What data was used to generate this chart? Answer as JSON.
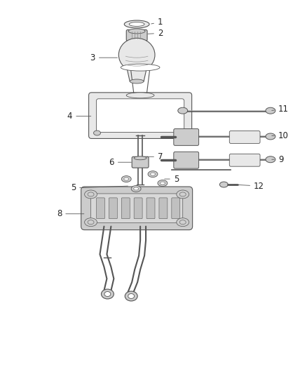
{
  "background_color": "#ffffff",
  "line_color": "#555555",
  "fill_light": "#e8e8e8",
  "fill_mid": "#cccccc",
  "fill_dark": "#aaaaaa",
  "label_color": "#222222",
  "label_fontsize": 8.5,
  "figsize": [
    4.38,
    5.33
  ],
  "dpi": 100
}
